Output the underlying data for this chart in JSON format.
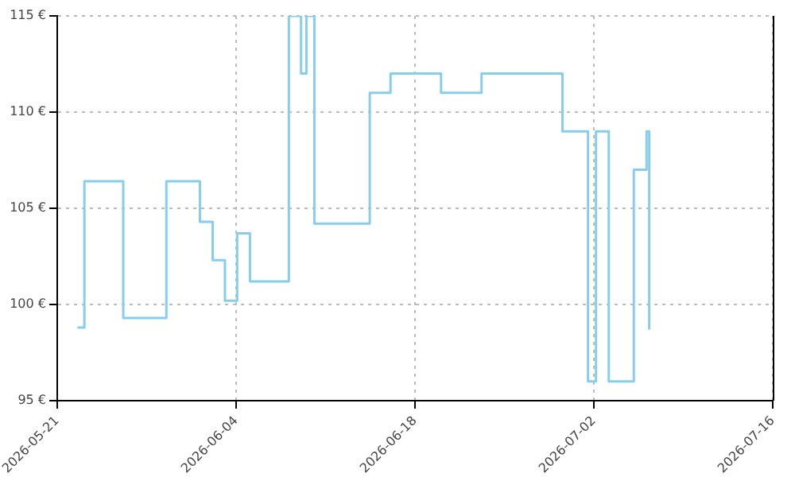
{
  "chart_data": {
    "type": "step",
    "color": "#87ceeb",
    "x": [
      "2026-05-22T14:00",
      "2026-05-23T03:00",
      "2026-05-26T04:00",
      "2026-05-29T13:00",
      "2026-06-01T04:00",
      "2026-06-02T04:00",
      "2026-06-03T03:00",
      "2026-06-04T02:00",
      "2026-06-05T02:00",
      "2026-06-08T03:00",
      "2026-06-09T02:00",
      "2026-06-09T12:00",
      "2026-06-10T03:00",
      "2026-06-14T11:00",
      "2026-06-16T02:00",
      "2026-06-20T01:00",
      "2026-06-23T05:00",
      "2026-06-29T13:00",
      "2026-07-01T13:00",
      "2026-07-02T04:00",
      "2026-07-03T04:00",
      "2026-07-05T03:00",
      "2026-07-06T03:00",
      "2026-07-06T08:00"
    ],
    "values": [
      98.8,
      106.4,
      99.3,
      106.4,
      104.3,
      102.3,
      100.2,
      103.7,
      101.2,
      115,
      112,
      115,
      104.2,
      111,
      112,
      111,
      112,
      109,
      96,
      109,
      96,
      107,
      109,
      98.7
    ],
    "xlim": [
      "2026-05-21",
      "2026-07-16"
    ],
    "xticks": [
      "2026-05-21",
      "2026-06-04",
      "2026-06-18",
      "2026-07-02",
      "2026-07-16"
    ],
    "ylim": [
      95,
      115
    ],
    "yticks": [
      {
        "value": 95,
        "label": "95 €"
      },
      {
        "value": 100,
        "label": "100 €"
      },
      {
        "value": 105,
        "label": "105 €"
      },
      {
        "value": 110,
        "label": "110 €"
      },
      {
        "value": 115,
        "label": "115 €"
      }
    ],
    "grid": true,
    "legend": false
  }
}
